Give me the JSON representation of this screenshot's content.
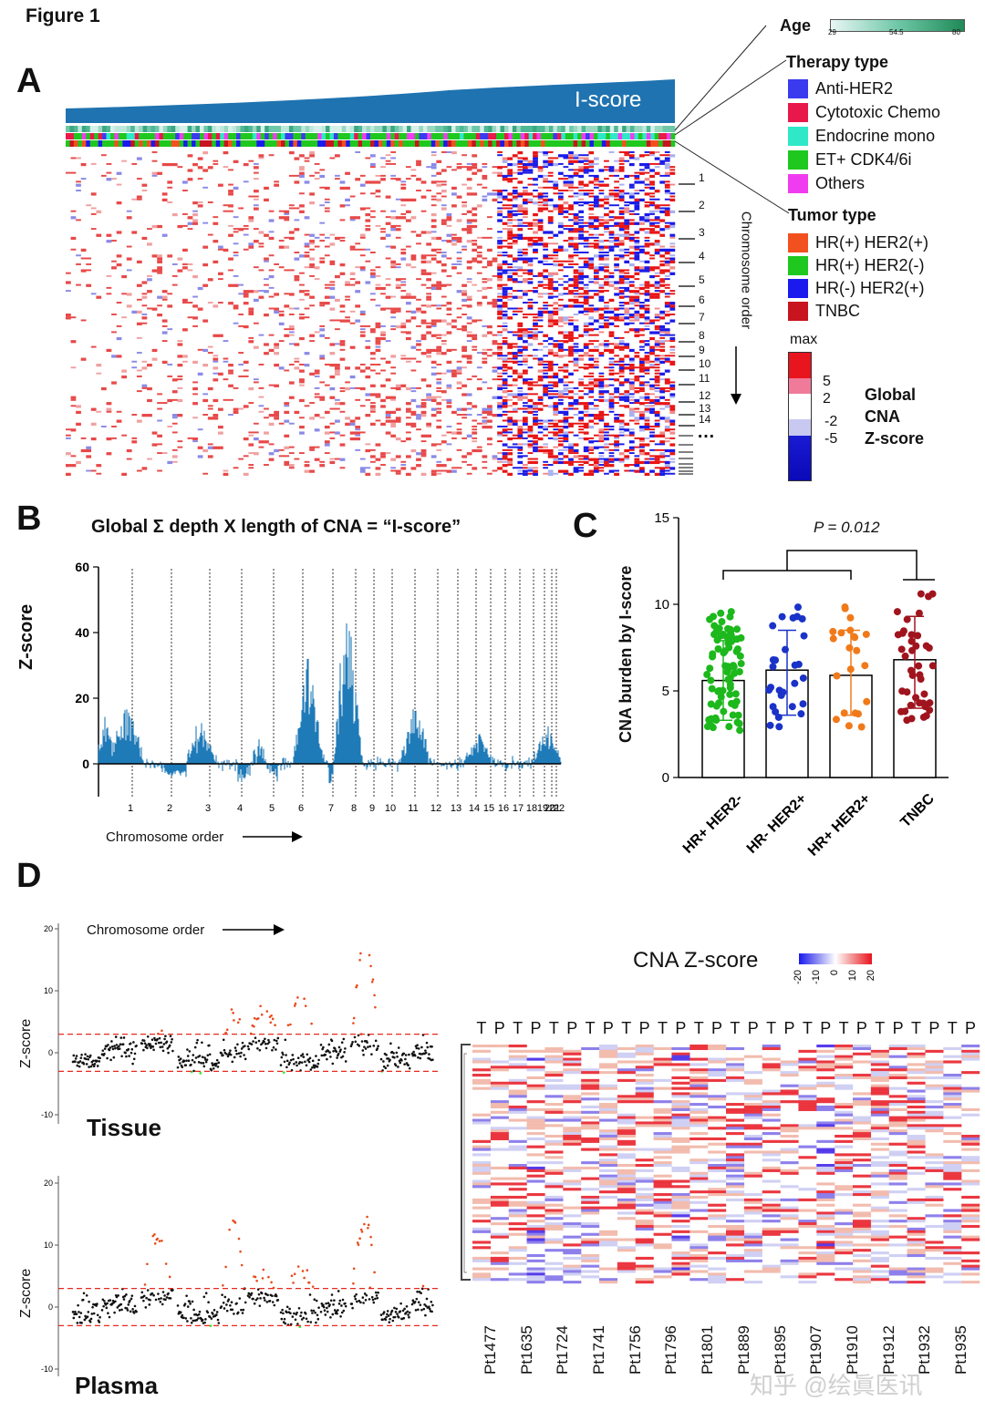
{
  "figure_title": "Figure 1",
  "panels": {
    "A": "A",
    "B": "B",
    "C": "C",
    "D": "D"
  },
  "panelA": {
    "iscore_label": "I-score",
    "chromosome_axis_label": "Chromosome order",
    "row_labels": [
      "1",
      "2",
      "3",
      "4",
      "5",
      "6",
      "7",
      "8",
      "9",
      "10",
      "11",
      "12",
      "13",
      "14"
    ],
    "ellipsis": "…"
  },
  "legend": {
    "age": {
      "title": "Age",
      "ticks": [
        "29",
        "54.5",
        "80"
      ],
      "colors": [
        "#e8f6f4",
        "#1f8a57"
      ]
    },
    "therapy": {
      "title": "Therapy type",
      "items": [
        {
          "label": "Anti-HER2",
          "color": "#3a3aef"
        },
        {
          "label": "Cytotoxic Chemo",
          "color": "#e8194a"
        },
        {
          "label": "Endocrine mono",
          "color": "#2ee8c8"
        },
        {
          "label": "ET+ CDK4/6i",
          "color": "#1ec81e"
        },
        {
          "label": "Others",
          "color": "#f03cf0"
        }
      ]
    },
    "tumor": {
      "title": "Tumor type",
      "items": [
        {
          "label": "HR(+) HER2(+)",
          "color": "#f2501e"
        },
        {
          "label": "HR(+) HER2(-)",
          "color": "#1ec81e"
        },
        {
          "label": "HR(-) HER2(+)",
          "color": "#1a1aee"
        },
        {
          "label": "TNBC",
          "color": "#c8141e"
        }
      ]
    },
    "cna": {
      "max_label": "max",
      "ticks": [
        "5",
        "2",
        "-2",
        "-5"
      ],
      "title_lines": [
        "Global",
        "CNA",
        "Z-score"
      ]
    }
  },
  "panelB": {
    "title": "Global Σ depth X length of CNA = “I-score”",
    "ylabel": "Z-score",
    "xlabel": "Chromosome order",
    "yticks": [
      "0",
      "20",
      "40",
      "60"
    ],
    "xticks": [
      "1",
      "2",
      "3",
      "4",
      "5",
      "6",
      "7",
      "8",
      "9",
      "10",
      "11",
      "12",
      "13",
      "14",
      "15",
      "16",
      "17",
      "18",
      "19",
      "20",
      "21",
      "22"
    ]
  },
  "chart_data": [
    {
      "type": "bar",
      "title": "",
      "ylabel": "CNA burden by I-score",
      "categories": [
        "HR+ HER2-",
        "HR- HER2+",
        "HR+ HER2+",
        "TNBC"
      ],
      "values": [
        5.6,
        6.2,
        5.9,
        6.8
      ],
      "error_low": [
        3.3,
        3.6,
        3.6,
        4.0
      ],
      "error_high": [
        7.9,
        8.5,
        8.5,
        9.3
      ],
      "colors": [
        "#1cb81c",
        "#1a32c8",
        "#f07a1a",
        "#a0141e"
      ],
      "ylim": [
        0,
        15
      ],
      "yticks": [
        "0",
        "5",
        "10",
        "15"
      ],
      "annotation": "P = 0.012",
      "grid": false
    },
    {
      "type": "heatmap",
      "title": "CNA Z-score",
      "colorbar_ticks": [
        "-20",
        "-10",
        "0",
        "10",
        "20"
      ],
      "column_headers": [
        "T",
        "P",
        "T",
        "P",
        "T",
        "P",
        "T",
        "P",
        "T",
        "P",
        "T",
        "P",
        "T",
        "P",
        "T",
        "P",
        "T",
        "P",
        "T",
        "P",
        "T",
        "P",
        "T",
        "P",
        "T",
        "P",
        "T",
        "P"
      ],
      "patients": [
        "Pt1477",
        "Pt1635",
        "Pt1724",
        "Pt1741",
        "Pt1756",
        "Pt1796",
        "Pt1801",
        "Pt1889",
        "Pt1895",
        "Pt1907",
        "Pt1910",
        "Pt1912",
        "Pt1932",
        "Pt1935"
      ]
    }
  ],
  "panelD": {
    "chromosome_label": "Chromosome order",
    "tissue_label": "Tissue",
    "plasma_label": "Plasma",
    "ylabel": "Z-score",
    "yticks": [
      "20",
      "10",
      "0",
      "-10"
    ]
  },
  "watermark": "知乎 @绘眞医讯"
}
